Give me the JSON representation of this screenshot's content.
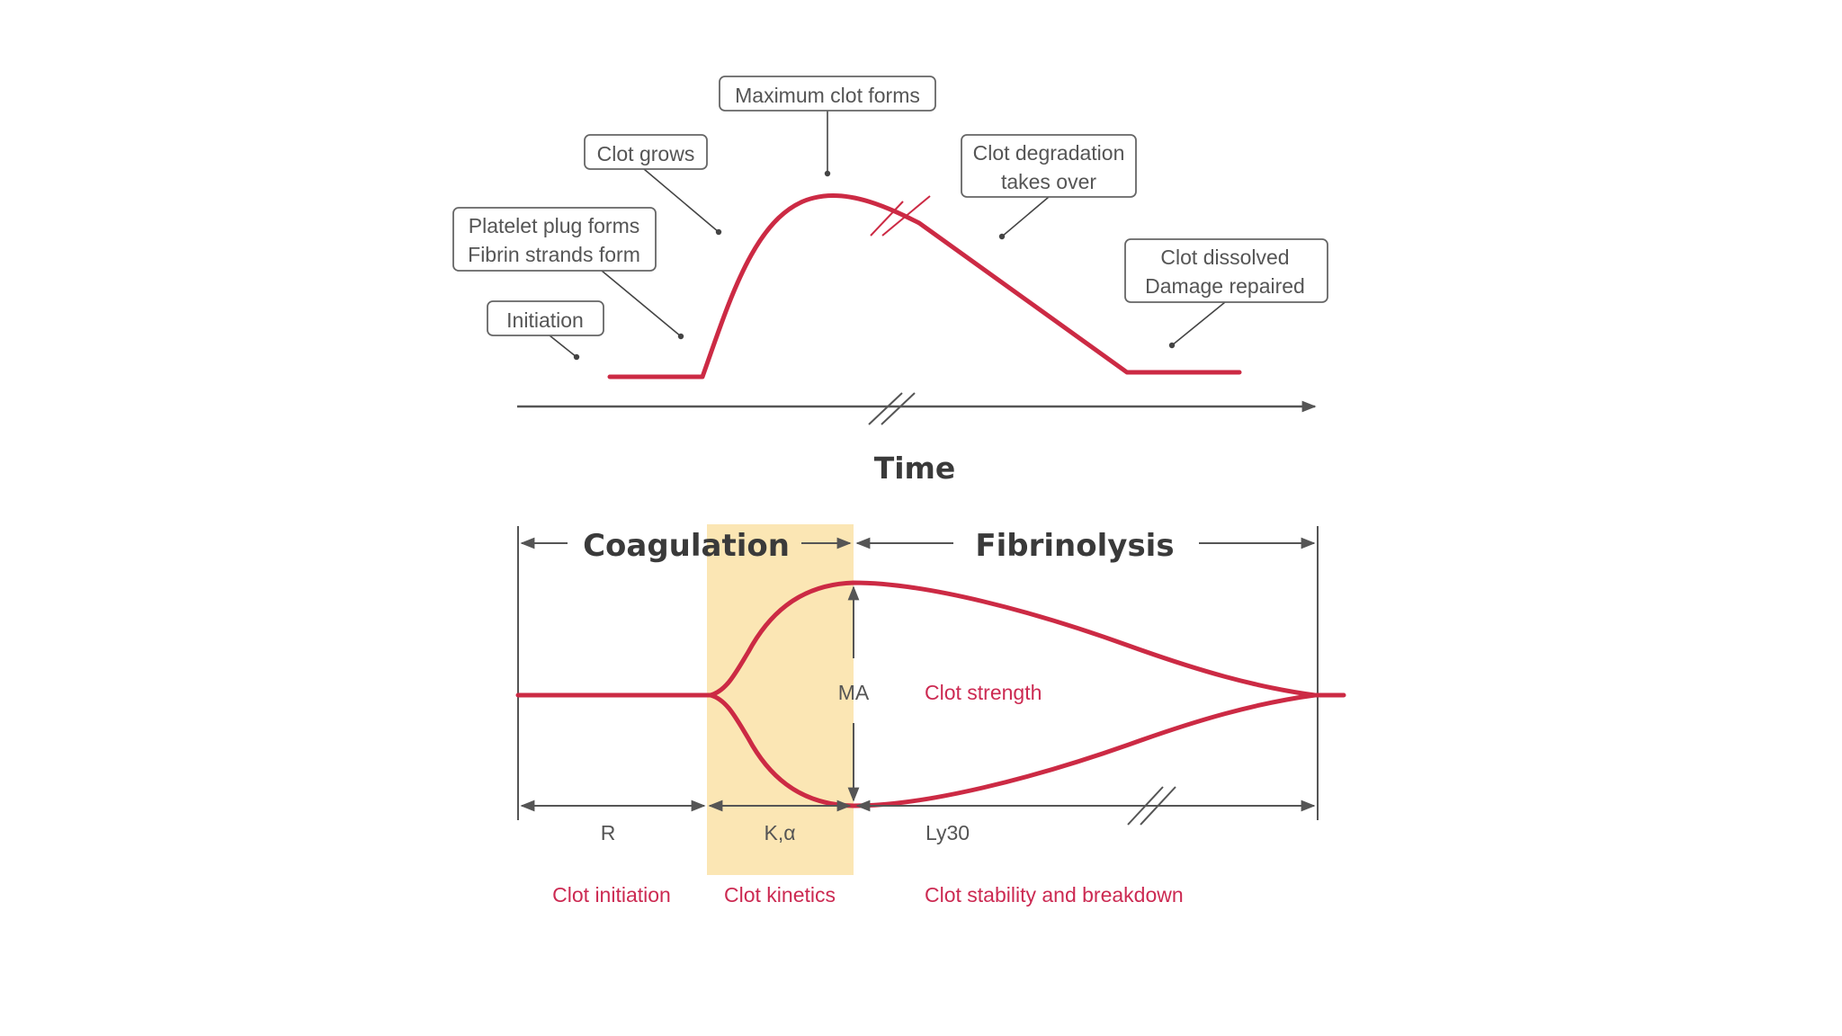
{
  "top_diagram": {
    "axis_label": "Time",
    "callouts": {
      "initiation": [
        "Initiation"
      ],
      "platelet_plug": [
        "Platelet plug forms",
        "Fibrin strands form"
      ],
      "clot_grows": [
        "Clot grows"
      ],
      "maximum_clot": [
        "Maximum clot forms"
      ],
      "degradation": [
        "Clot degradation",
        "takes over"
      ],
      "dissolved": [
        "Clot dissolved",
        "Damage repaired"
      ]
    }
  },
  "bottom_diagram": {
    "phase_coagulation": "Coagulation",
    "phase_fibrinolysis": "Fibrinolysis",
    "param_r": "R",
    "param_k": "K,α",
    "param_ma": "MA",
    "param_ly30": "Ly30",
    "clot_strength": "Clot strength",
    "desc_initiation": "Clot initiation",
    "desc_kinetics": "Clot kinetics",
    "desc_stability": "Clot stability and breakdown"
  },
  "colors": {
    "curve": "#cc2a44",
    "highlight": "#fbe6b4",
    "axis": "#555555",
    "red_text": "#cc2a52",
    "gray_text": "#555555",
    "bold_text": "#3a3a3a"
  }
}
